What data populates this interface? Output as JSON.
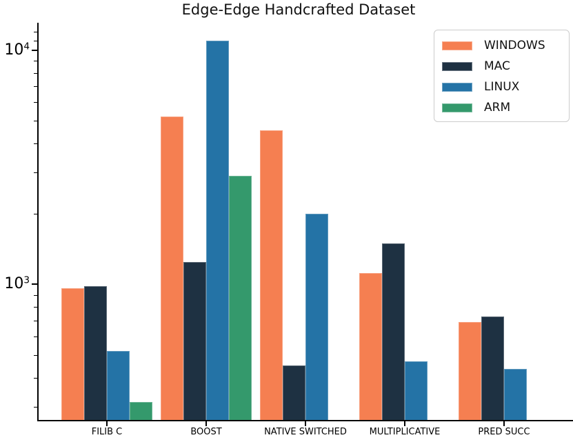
{
  "title": "Edge-Edge Handcrafted Dataset",
  "colors": {
    "background": "#ffffff",
    "axis": "#000000",
    "legend_border": "#cccccc"
  },
  "chart_data": {
    "type": "bar",
    "yscale": "log",
    "title": "Edge-Edge Handcrafted Dataset",
    "xlabel": "",
    "ylabel": "",
    "grid": false,
    "legend_position": "upper right",
    "categories": [
      "FILIB C",
      "BOOST",
      "NATIVE SWITCHED",
      "MULTIPLICATIVE",
      "PRED SUCC"
    ],
    "series": [
      {
        "name": "WINDOWS",
        "color": "#F57F51",
        "values": [
          960,
          5200,
          4550,
          1120,
          690
        ]
      },
      {
        "name": "MAC",
        "color": "#1E3142",
        "values": [
          985,
          1250,
          450,
          1500,
          730
        ]
      },
      {
        "name": "LINUX",
        "color": "#2473A6",
        "values": [
          520,
          11000,
          2000,
          470,
          435
        ]
      },
      {
        "name": "ARM",
        "color": "#34996C",
        "values": [
          315,
          2900,
          null,
          null,
          null
        ]
      }
    ],
    "ylim": [
      262,
      13100
    ],
    "yticks_major": [
      1000,
      10000
    ],
    "yticks_major_labels": [
      "10^3",
      "10^4"
    ],
    "yticks_minor": [
      300,
      400,
      500,
      600,
      700,
      800,
      900,
      2000,
      3000,
      4000,
      5000,
      6000,
      7000,
      8000,
      9000,
      11000,
      12000
    ]
  }
}
